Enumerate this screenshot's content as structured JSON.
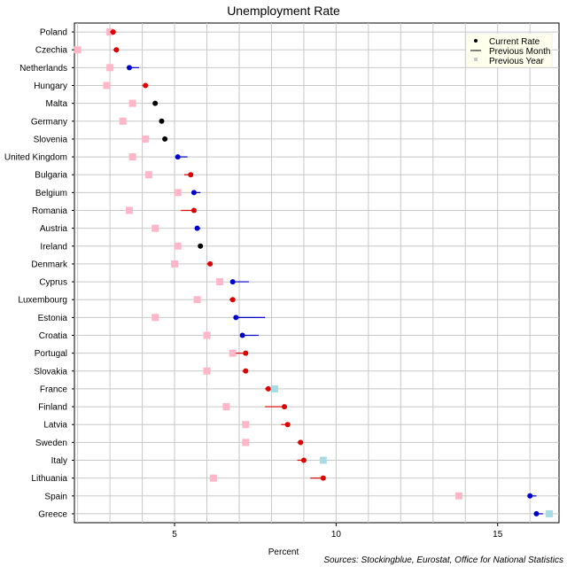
{
  "chart_data": {
    "type": "scatter",
    "title": "Unemployment Rate",
    "xlabel": "Percent",
    "source": "Sources: Stockingblue, Eurostat, Office for National Statistics",
    "xlim": [
      1.9,
      16.9
    ],
    "xticks": [
      5,
      10,
      15
    ],
    "grid": true,
    "legend_position": "top-right",
    "legend": {
      "current": "Current Rate",
      "month": "Previous Month",
      "year": "Previous Year"
    },
    "colors": {
      "up": "#dd0000",
      "down": "#0000cc",
      "same": "#000000",
      "year_lower": "#ffb6c8",
      "year_higher": "#a8dce4"
    },
    "countries": [
      {
        "name": "Poland",
        "current": 3.1,
        "previous_month": 3.0,
        "previous_year": 3.0
      },
      {
        "name": "Czechia",
        "current": 3.2,
        "previous_month": 3.1,
        "previous_year": 2.0
      },
      {
        "name": "Netherlands",
        "current": 3.6,
        "previous_month": 3.9,
        "previous_year": 3.0
      },
      {
        "name": "Hungary",
        "current": 4.1,
        "previous_month": 4.0,
        "previous_year": 2.9
      },
      {
        "name": "Malta",
        "current": 4.4,
        "previous_month": 4.4,
        "previous_year": 3.7
      },
      {
        "name": "Germany",
        "current": 4.6,
        "previous_month": 4.6,
        "previous_year": 3.4
      },
      {
        "name": "Slovenia",
        "current": 4.7,
        "previous_month": 4.7,
        "previous_year": 4.1
      },
      {
        "name": "United Kingdom",
        "current": 5.1,
        "previous_month": 5.4,
        "previous_year": 3.7
      },
      {
        "name": "Bulgaria",
        "current": 5.5,
        "previous_month": 5.3,
        "previous_year": 4.2
      },
      {
        "name": "Belgium",
        "current": 5.6,
        "previous_month": 5.8,
        "previous_year": 5.1
      },
      {
        "name": "Romania",
        "current": 5.6,
        "previous_month": 5.2,
        "previous_year": 3.6
      },
      {
        "name": "Austria",
        "current": 5.7,
        "previous_month": 5.8,
        "previous_year": 4.4
      },
      {
        "name": "Ireland",
        "current": 5.8,
        "previous_month": 5.8,
        "previous_year": 5.1
      },
      {
        "name": "Denmark",
        "current": 6.1,
        "previous_month": 6.0,
        "previous_year": 5.0
      },
      {
        "name": "Cyprus",
        "current": 6.8,
        "previous_month": 7.3,
        "previous_year": 6.4
      },
      {
        "name": "Luxembourg",
        "current": 6.8,
        "previous_month": 6.7,
        "previous_year": 5.7
      },
      {
        "name": "Estonia",
        "current": 6.9,
        "previous_month": 7.8,
        "previous_year": 4.4
      },
      {
        "name": "Croatia",
        "current": 7.1,
        "previous_month": 7.6,
        "previous_year": 6.0
      },
      {
        "name": "Portugal",
        "current": 7.2,
        "previous_month": 6.9,
        "previous_year": 6.8
      },
      {
        "name": "Slovakia",
        "current": 7.2,
        "previous_month": 7.1,
        "previous_year": 6.0
      },
      {
        "name": "France",
        "current": 7.9,
        "previous_month": 7.8,
        "previous_year": 8.1
      },
      {
        "name": "Finland",
        "current": 8.4,
        "previous_month": 7.8,
        "previous_year": 6.6
      },
      {
        "name": "Latvia",
        "current": 8.5,
        "previous_month": 8.3,
        "previous_year": 7.2
      },
      {
        "name": "Sweden",
        "current": 8.9,
        "previous_month": 8.8,
        "previous_year": 7.2
      },
      {
        "name": "Italy",
        "current": 9.0,
        "previous_month": 8.8,
        "previous_year": 9.6
      },
      {
        "name": "Lithuania",
        "current": 9.6,
        "previous_month": 9.2,
        "previous_year": 6.2
      },
      {
        "name": "Spain",
        "current": 16.0,
        "previous_month": 16.2,
        "previous_year": 13.8
      },
      {
        "name": "Greece",
        "current": 16.2,
        "previous_month": 16.4,
        "previous_year": 16.6
      }
    ]
  }
}
